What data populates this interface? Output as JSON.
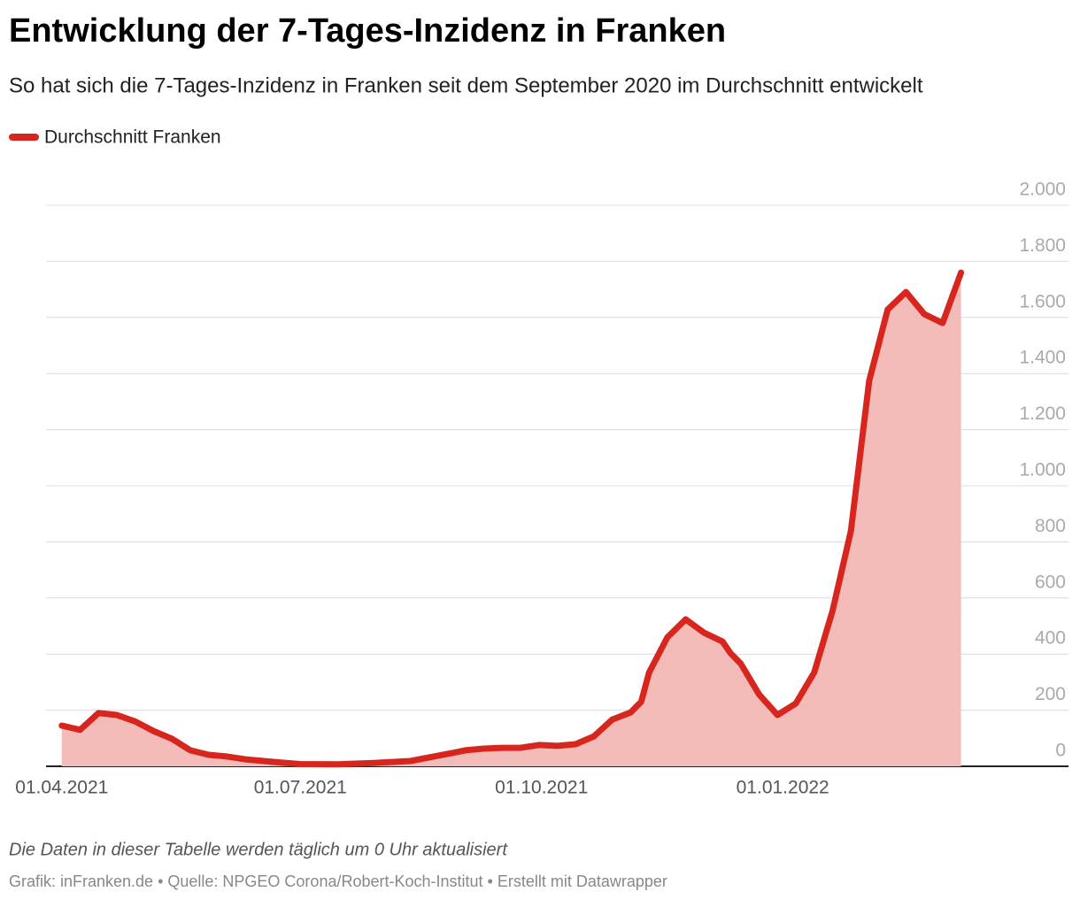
{
  "chart_data": {
    "type": "line",
    "area": true,
    "title": "Entwicklung der 7-Tages-Inzidenz in Franken",
    "subtitle": "So hat sich die 7-Tages-Inzidenz in Franken seit dem September 2020 im Durchschnitt entwickelt",
    "note": "Die Daten in dieser Tabelle werden täglich um 0 Uhr aktualisiert",
    "source": "Grafik: inFranken.de • Quelle: NPGEO Corona/Robert-Koch-Institut • Erstellt mit Datawrapper",
    "x": [
      "01.04.2021",
      "08.04.2021",
      "15.04.2021",
      "22.04.2021",
      "29.04.2021",
      "06.05.2021",
      "13.05.2021",
      "20.05.2021",
      "27.05.2021",
      "03.06.2021",
      "10.06.2021",
      "17.06.2021",
      "24.06.2021",
      "01.07.2021",
      "15.07.2021",
      "29.07.2021",
      "12.08.2021",
      "26.08.2021",
      "02.09.2021",
      "09.09.2021",
      "16.09.2021",
      "23.09.2021",
      "30.09.2021",
      "07.10.2021",
      "14.10.2021",
      "21.10.2021",
      "28.10.2021",
      "04.11.2021",
      "08.11.2021",
      "11.11.2021",
      "18.11.2021",
      "25.11.2021",
      "02.12.2021",
      "09.12.2021",
      "12.12.2021",
      "16.12.2021",
      "23.12.2021",
      "30.12.2021",
      "06.01.2022",
      "13.01.2022",
      "20.01.2022",
      "27.01.2022",
      "03.02.2022",
      "10.02.2022",
      "17.02.2022",
      "24.02.2022",
      "03.03.2022",
      "10.03.2022"
    ],
    "series": [
      {
        "name": "Durchschnitt Franken",
        "color": "#d7261e",
        "fill": "#f4bcb9",
        "values": [
          145,
          130,
          190,
          183,
          160,
          126,
          98,
          57,
          41,
          35,
          25,
          19,
          13,
          8,
          7,
          12,
          19,
          44,
          57,
          63,
          66,
          66,
          76,
          73,
          79,
          107,
          167,
          192,
          230,
          334,
          460,
          524,
          476,
          445,
          404,
          366,
          256,
          183,
          224,
          334,
          555,
          839,
          1375,
          1628,
          1691,
          1612,
          1580,
          1760
        ]
      }
    ],
    "xlim": [
      "26.03.2021",
      "20.04.2022"
    ],
    "xticks": [
      "01.04.2021",
      "01.07.2021",
      "01.10.2021",
      "01.01.2022"
    ],
    "ylim": [
      0,
      2000
    ],
    "yticks": [
      0,
      200,
      400,
      600,
      800,
      {
        "value": 1000,
        "label": "1.000"
      },
      {
        "value": 1200,
        "label": "1.200"
      },
      {
        "value": 1400,
        "label": "1.400"
      },
      {
        "value": 1600,
        "label": "1.600"
      },
      {
        "value": 1800,
        "label": "1.800"
      },
      {
        "value": 2000,
        "label": "2.000"
      }
    ],
    "grid": true
  }
}
